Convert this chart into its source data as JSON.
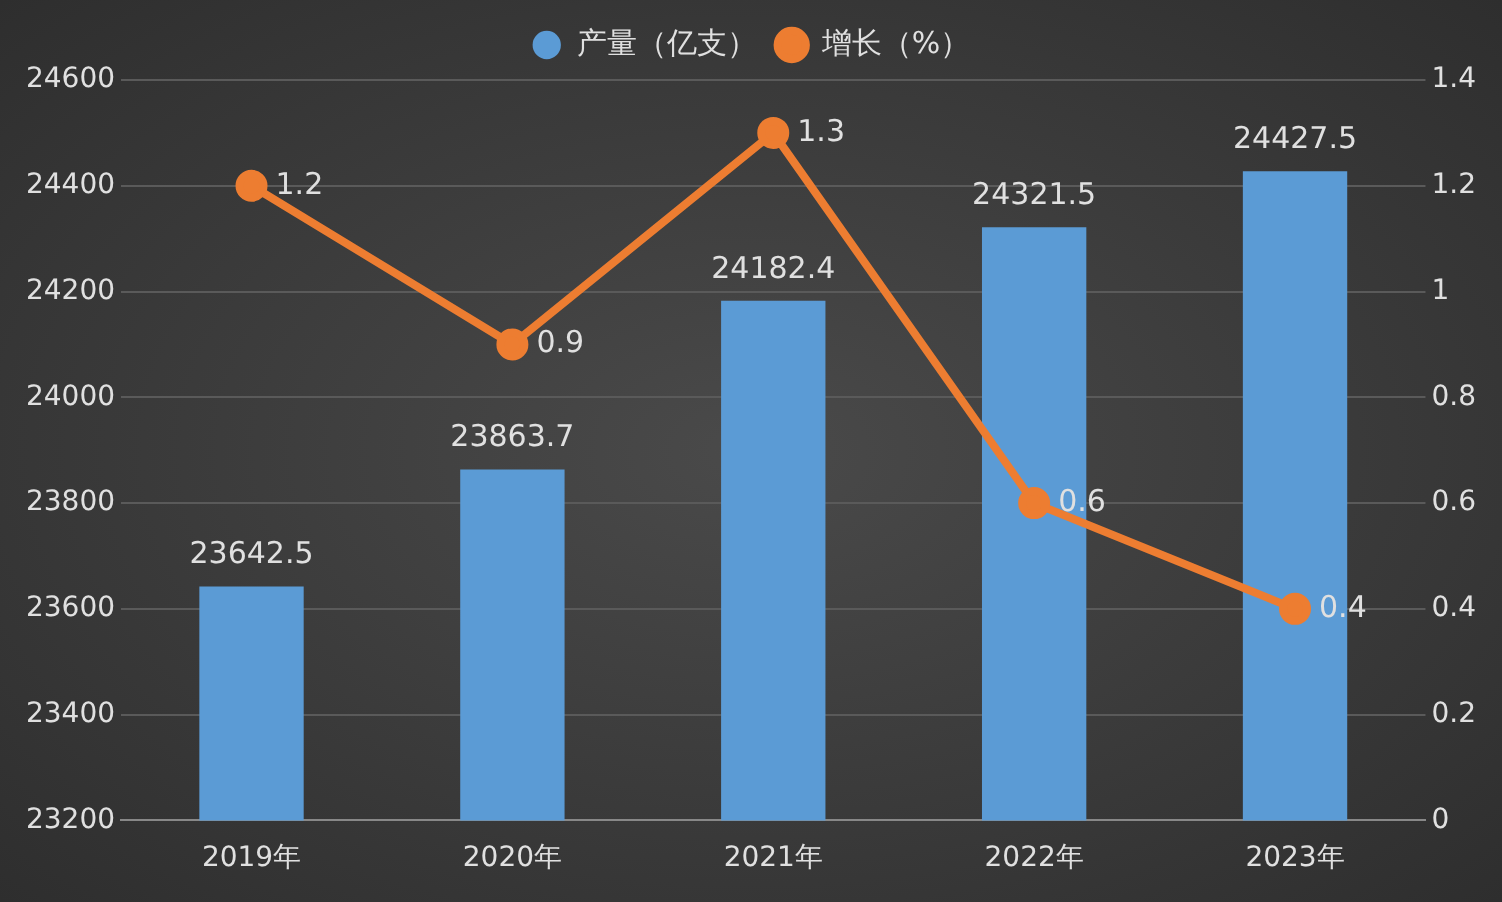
{
  "chart_data": {
    "type": "bar",
    "categories": [
      "2019年",
      "2020年",
      "2021年",
      "2022年",
      "2023年"
    ],
    "series": [
      {
        "name": "产量（亿支）",
        "color": "#5b9bd5",
        "values": [
          23642.5,
          23863.7,
          24182.4,
          24321.5,
          24427.5
        ]
      },
      {
        "name": "增长（%）",
        "type": "line",
        "axis": "y2",
        "color": "#ed7d31",
        "values": [
          1.2,
          0.9,
          1.3,
          0.6,
          0.4
        ]
      }
    ],
    "ylim": [
      23200,
      24600
    ],
    "yticks": [
      23200,
      23400,
      23600,
      23800,
      24000,
      24200,
      24400,
      24600
    ],
    "y2lim": [
      0,
      1.4
    ],
    "y2ticks": [
      0,
      0.2,
      0.4,
      0.6,
      0.8,
      1,
      1.2,
      1.4
    ],
    "grid": "y",
    "legend": "top",
    "data_labels": true,
    "marker": "circle"
  }
}
